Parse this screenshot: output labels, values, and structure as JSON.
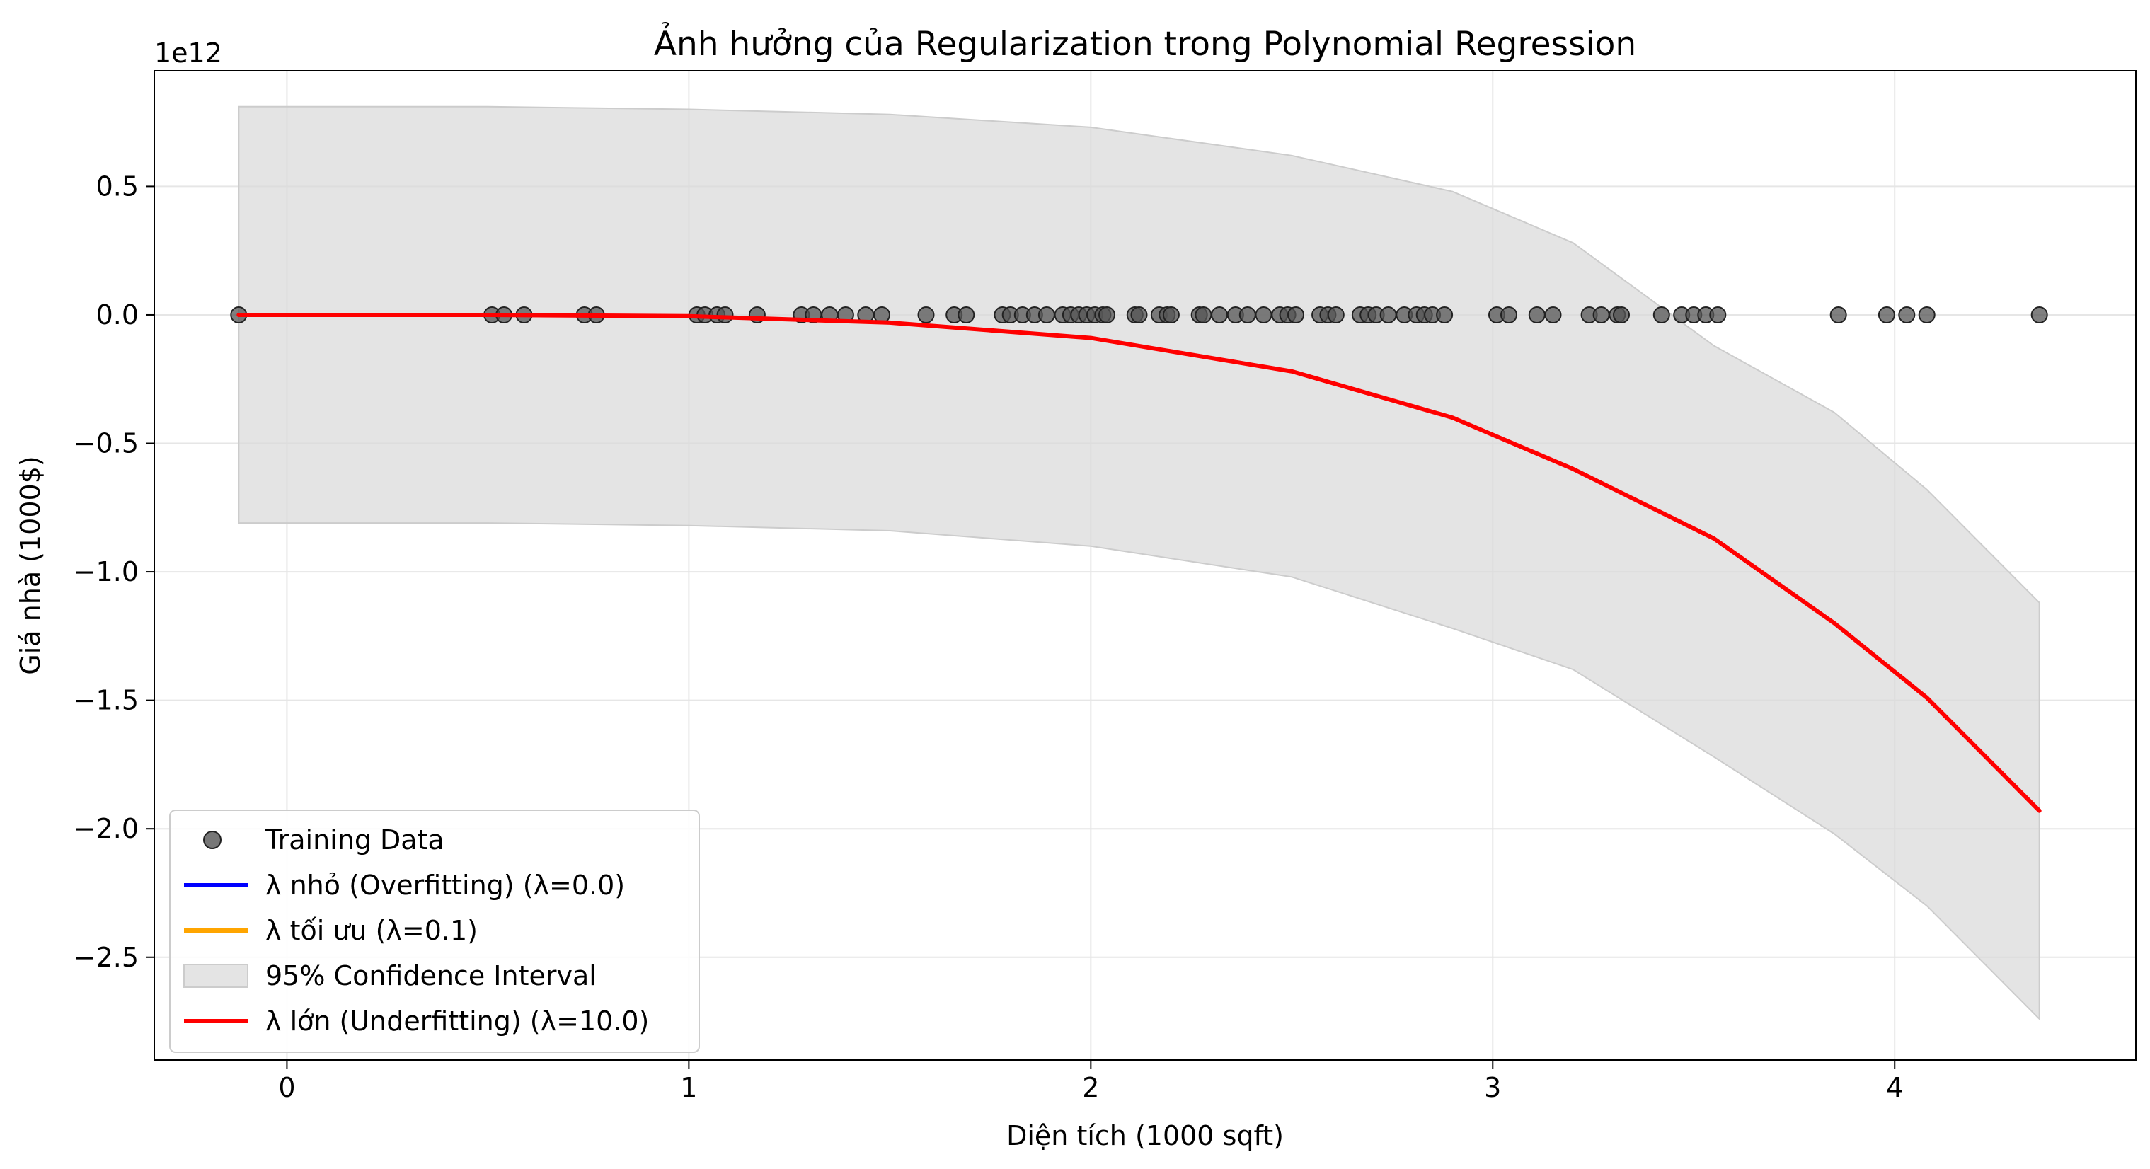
{
  "chart_data": {
    "type": "line",
    "title": "Ảnh hưởng của Regularization trong Polynomial Regression",
    "xlabel": "Diện tích (1000 sqft)",
    "ylabel": "Giá nhà (1000$)",
    "y_offset_label": "1e12",
    "y_scale_factor": 1000000000000,
    "xlim": [
      -0.33,
      4.6
    ],
    "ylim": [
      -2.9,
      0.95
    ],
    "x_ticks": [
      0,
      1,
      2,
      3,
      4
    ],
    "x_tick_labels": [
      "0",
      "1",
      "2",
      "3",
      "4"
    ],
    "y_ticks": [
      0.5,
      0.0,
      -0.5,
      -1.0,
      -1.5,
      -2.0,
      -2.5
    ],
    "y_tick_labels": [
      "0.5",
      "0.0",
      "−0.5",
      "−1.0",
      "−1.5",
      "−2.0",
      "−2.5"
    ],
    "grid": true,
    "legend_placement": "lower-left",
    "legend": [
      {
        "label": "Training Data",
        "kind": "scatter",
        "color": "#555555"
      },
      {
        "label": "λ nhỏ (Overfitting) (λ=0.0)",
        "kind": "line",
        "color": "#0000ff"
      },
      {
        "label": "λ tối ưu (λ=0.1)",
        "kind": "line",
        "color": "#ffa500"
      },
      {
        "label": "95% Confidence Interval",
        "kind": "band",
        "color": "#d9d9d9"
      },
      {
        "label": "λ lớn (Underfitting) (λ=10.0)",
        "kind": "line",
        "color": "#ff0000"
      }
    ],
    "scatter": {
      "name": "Training Data",
      "color": "#555555",
      "x": [
        -0.12,
        0.51,
        0.54,
        0.59,
        0.74,
        0.77,
        1.02,
        1.04,
        1.07,
        1.09,
        1.17,
        1.28,
        1.31,
        1.35,
        1.39,
        1.44,
        1.48,
        1.59,
        1.66,
        1.69,
        1.78,
        1.8,
        1.83,
        1.86,
        1.89,
        1.93,
        1.95,
        1.97,
        1.99,
        2.01,
        2.03,
        2.04,
        2.11,
        2.12,
        2.17,
        2.19,
        2.2,
        2.27,
        2.28,
        2.32,
        2.36,
        2.39,
        2.43,
        2.47,
        2.49,
        2.51,
        2.57,
        2.59,
        2.61,
        2.67,
        2.69,
        2.71,
        2.74,
        2.78,
        2.81,
        2.83,
        2.85,
        2.88,
        3.01,
        3.04,
        3.11,
        3.15,
        3.24,
        3.27,
        3.31,
        3.32,
        3.42,
        3.47,
        3.5,
        3.53,
        3.56,
        3.86,
        3.98,
        4.03,
        4.08,
        4.36
      ],
      "y": [
        0,
        0,
        0,
        0,
        0,
        0,
        0,
        0,
        0,
        0,
        0,
        0,
        0,
        0,
        0,
        0,
        0,
        0,
        0,
        0,
        0,
        0,
        0,
        0,
        0,
        0,
        0,
        0,
        0,
        0,
        0,
        0,
        0,
        0,
        0,
        0,
        0,
        0,
        0,
        0,
        0,
        0,
        0,
        0,
        0,
        0,
        0,
        0,
        0,
        0,
        0,
        0,
        0,
        0,
        0,
        0,
        0,
        0,
        0,
        0,
        0,
        0,
        0,
        0,
        0,
        0,
        0,
        0,
        0,
        0,
        0,
        0,
        0,
        0,
        0,
        0
      ]
    },
    "confidence_band": {
      "name": "95% Confidence Interval",
      "color": "#d9d9d9",
      "x": [
        -0.12,
        0.5,
        1.0,
        1.5,
        2.0,
        2.5,
        2.9,
        3.2,
        3.55,
        3.85,
        4.08,
        4.36
      ],
      "upper": [
        0.81,
        0.81,
        0.8,
        0.78,
        0.73,
        0.62,
        0.48,
        0.28,
        -0.12,
        -0.38,
        -0.68,
        -1.12
      ],
      "lower": [
        -0.81,
        -0.81,
        -0.82,
        -0.84,
        -0.9,
        -1.02,
        -1.22,
        -1.38,
        -1.72,
        -2.02,
        -2.3,
        -2.74
      ]
    },
    "series": [
      {
        "name": "λ lớn (Underfitting) (λ=10.0)",
        "color": "#ff0000",
        "x": [
          -0.12,
          0.5,
          1.0,
          1.5,
          2.0,
          2.5,
          2.9,
          3.2,
          3.55,
          3.85,
          4.08,
          4.36
        ],
        "values": [
          0.0,
          0.0,
          -0.005,
          -0.03,
          -0.09,
          -0.22,
          -0.4,
          -0.6,
          -0.87,
          -1.2,
          -1.49,
          -1.93
        ]
      }
    ]
  }
}
